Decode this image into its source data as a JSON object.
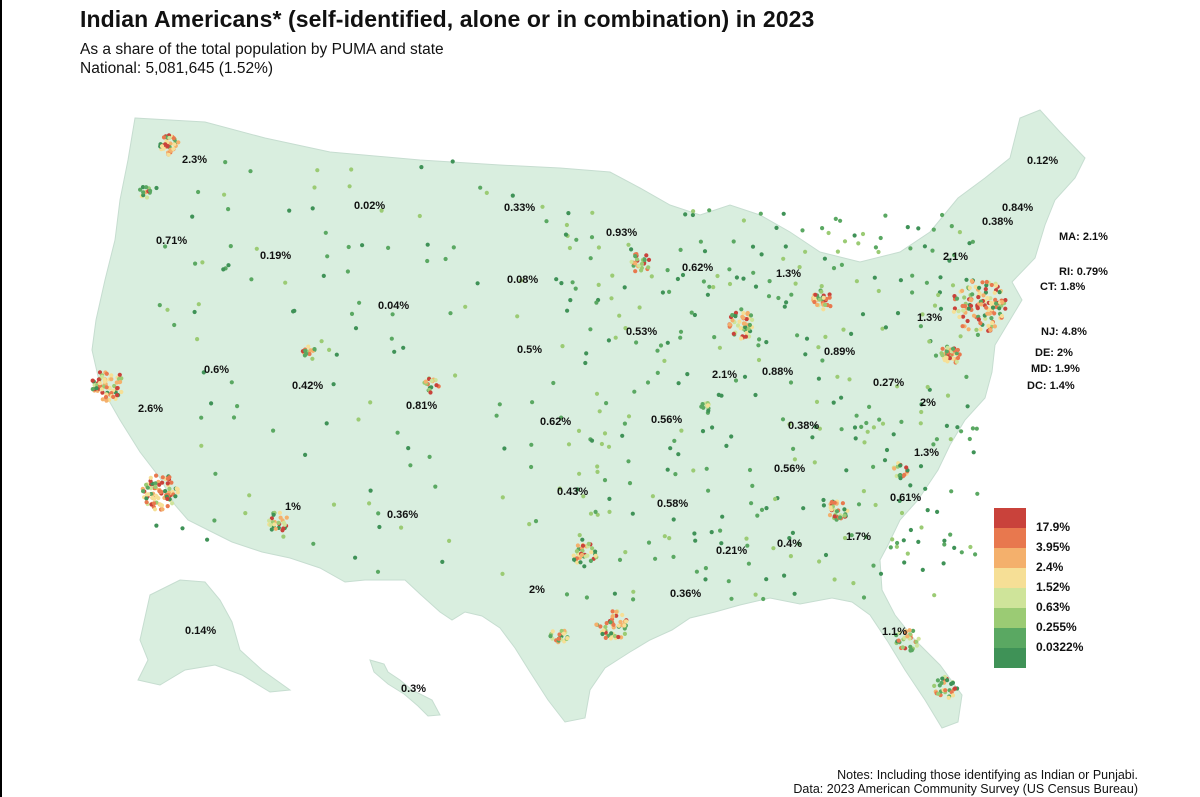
{
  "title": "Indian Americans* (self-identified, alone or in combination) in 2023",
  "subtitle": "As a share of the total population by PUMA and state",
  "national": "National: 5,081,645 (1.52%)",
  "notes": "Notes: Including those identifying as Indian or Punjabi.",
  "source": "Data: 2023 American Community Survey (US Census Bureau)",
  "colors": {
    "land": "#d9eedf",
    "land_light": "#eef6de",
    "border": "#c6ddd0"
  },
  "legend": [
    {
      "label": "17.9%",
      "color": "#c9423b"
    },
    {
      "label": "3.95%",
      "color": "#e8784e"
    },
    {
      "label": "2.4%",
      "color": "#f4b06c"
    },
    {
      "label": "1.52%",
      "color": "#f6df96"
    },
    {
      "label": "0.63%",
      "color": "#cfe49a"
    },
    {
      "label": "0.255%",
      "color": "#9bcb74"
    },
    {
      "label": "0.0322%",
      "color": "#5aa862"
    },
    {
      "label": "",
      "color": "#3f9257"
    }
  ],
  "state_labels": [
    {
      "text": "2.3%"
    },
    {
      "text": "0.71%"
    },
    {
      "text": "0.19%"
    },
    {
      "text": "0.02%"
    },
    {
      "text": "0.33%"
    },
    {
      "text": "0.93%"
    },
    {
      "text": "0.62%"
    },
    {
      "text": "1.3%"
    },
    {
      "text": "0.08%"
    },
    {
      "text": "0.04%"
    },
    {
      "text": "0.53%"
    },
    {
      "text": "0.5%"
    },
    {
      "text": "0.6%"
    },
    {
      "text": "0.42%"
    },
    {
      "text": "0.81%"
    },
    {
      "text": "2.6%"
    },
    {
      "text": "2.1%"
    },
    {
      "text": "0.88%"
    },
    {
      "text": "0.89%"
    },
    {
      "text": "0.27%"
    },
    {
      "text": "0.62%"
    },
    {
      "text": "0.56%"
    },
    {
      "text": "0.38%"
    },
    {
      "text": "0.56%"
    },
    {
      "text": "1%"
    },
    {
      "text": "0.36%"
    },
    {
      "text": "0.43%"
    },
    {
      "text": "0.58%"
    },
    {
      "text": "0.21%"
    },
    {
      "text": "0.4%"
    },
    {
      "text": "1.7%"
    },
    {
      "text": "0.61%"
    },
    {
      "text": "1.3%"
    },
    {
      "text": "2%"
    },
    {
      "text": "2%"
    },
    {
      "text": "0.36%"
    },
    {
      "text": "1.1%"
    },
    {
      "text": "0.14%"
    },
    {
      "text": "0.3%"
    },
    {
      "text": "0.12%"
    },
    {
      "text": "0.84%"
    },
    {
      "text": "0.38%"
    },
    {
      "text": "2.1%"
    },
    {
      "text": "1.3%"
    },
    {
      "text": "MA: 2.1%"
    },
    {
      "text": "RI: 0.79%"
    },
    {
      "text": "CT: 1.8%"
    },
    {
      "text": "NJ: 4.8%"
    },
    {
      "text": "DE: 2%"
    },
    {
      "text": "MD: 1.9%"
    },
    {
      "text": "DC: 1.4%"
    }
  ]
}
